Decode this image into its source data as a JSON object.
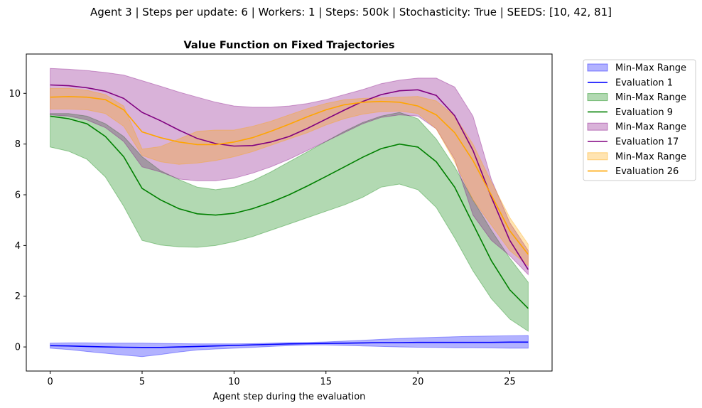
{
  "suptitle": "Agent 3 | Steps per update: 6 | Workers: 1 | Steps: 500k | Stochasticity: True | SEEDS: [10, 42, 81]",
  "chart_data": {
    "type": "line",
    "title": "Value Function on Fixed Trajectories",
    "xlabel": "Agent step during the evaluation",
    "ylabel": "",
    "xlim": [
      -1.3,
      27.3
    ],
    "ylim": [
      -0.95,
      11.55
    ],
    "x_ticks": [
      0,
      5,
      10,
      15,
      20,
      25
    ],
    "y_ticks": [
      0,
      2,
      4,
      6,
      8,
      10
    ],
    "grid": false,
    "legend_position": "outside-top-right",
    "x": [
      0,
      1,
      2,
      3,
      4,
      5,
      6,
      7,
      8,
      9,
      10,
      11,
      12,
      13,
      14,
      15,
      16,
      17,
      18,
      19,
      20,
      21,
      22,
      23,
      24,
      25,
      26
    ],
    "series": [
      {
        "name": "Evaluation 1",
        "band_name": "Min-Max Range",
        "color": "#0000ff",
        "values": [
          0.05,
          0.04,
          0.02,
          0.0,
          -0.01,
          -0.02,
          -0.02,
          0.0,
          0.02,
          0.04,
          0.06,
          0.08,
          0.1,
          0.12,
          0.13,
          0.14,
          0.15,
          0.16,
          0.17,
          0.17,
          0.18,
          0.18,
          0.18,
          0.18,
          0.18,
          0.19,
          0.19
        ],
        "min": [
          -0.05,
          -0.1,
          -0.18,
          -0.25,
          -0.32,
          -0.38,
          -0.3,
          -0.2,
          -0.12,
          -0.08,
          -0.05,
          -0.02,
          0.02,
          0.05,
          0.08,
          0.08,
          0.06,
          0.04,
          0.02,
          0.0,
          -0.01,
          -0.02,
          -0.03,
          -0.03,
          -0.04,
          -0.05,
          -0.05
        ],
        "max": [
          0.15,
          0.16,
          0.16,
          0.15,
          0.15,
          0.15,
          0.14,
          0.13,
          0.12,
          0.12,
          0.12,
          0.13,
          0.15,
          0.17,
          0.18,
          0.2,
          0.23,
          0.26,
          0.3,
          0.33,
          0.36,
          0.38,
          0.4,
          0.42,
          0.43,
          0.44,
          0.45
        ]
      },
      {
        "name": "Evaluation 9",
        "band_name": "Min-Max Range",
        "color": "#008000",
        "values": [
          9.1,
          9.0,
          8.8,
          8.3,
          7.5,
          6.25,
          5.8,
          5.45,
          5.25,
          5.2,
          5.27,
          5.45,
          5.7,
          6.0,
          6.35,
          6.72,
          7.1,
          7.48,
          7.82,
          8.0,
          7.88,
          7.3,
          6.3,
          4.85,
          3.4,
          2.25,
          1.52
        ],
        "min": [
          7.88,
          7.72,
          7.4,
          6.7,
          5.55,
          4.2,
          4.02,
          3.95,
          3.93,
          4.0,
          4.15,
          4.35,
          4.6,
          4.85,
          5.1,
          5.35,
          5.6,
          5.9,
          6.3,
          6.42,
          6.2,
          5.5,
          4.3,
          3.0,
          1.9,
          1.1,
          0.62
        ],
        "max": [
          9.2,
          9.2,
          9.1,
          8.8,
          8.3,
          7.5,
          6.95,
          6.6,
          6.3,
          6.2,
          6.3,
          6.55,
          6.9,
          7.3,
          7.7,
          8.1,
          8.5,
          8.85,
          9.1,
          9.25,
          9.0,
          8.2,
          7.1,
          5.8,
          4.6,
          3.5,
          2.55
        ]
      },
      {
        "name": "Evaluation 17",
        "band_name": "Min-Max Range",
        "color": "#800080",
        "values": [
          10.33,
          10.3,
          10.22,
          10.08,
          9.8,
          9.25,
          8.92,
          8.55,
          8.22,
          8.02,
          7.92,
          7.94,
          8.08,
          8.3,
          8.62,
          8.98,
          9.34,
          9.68,
          9.95,
          10.1,
          10.14,
          9.92,
          9.12,
          7.75,
          5.9,
          4.2,
          3.05
        ],
        "min": [
          9.15,
          9.1,
          8.95,
          8.65,
          8.1,
          7.1,
          6.9,
          6.62,
          6.55,
          6.55,
          6.65,
          6.85,
          7.1,
          7.4,
          7.75,
          8.1,
          8.45,
          8.8,
          9.05,
          9.15,
          9.1,
          8.6,
          7.4,
          5.2,
          4.2,
          3.6,
          2.85
        ],
        "max": [
          10.98,
          10.95,
          10.9,
          10.82,
          10.72,
          10.5,
          10.28,
          10.05,
          9.85,
          9.65,
          9.5,
          9.45,
          9.45,
          9.5,
          9.6,
          9.75,
          9.95,
          10.15,
          10.38,
          10.52,
          10.6,
          10.6,
          10.25,
          9.1,
          6.6,
          4.9,
          3.8
        ]
      },
      {
        "name": "Evaluation 26",
        "band_name": "Min-Max Range",
        "color": "#ffa500",
        "values": [
          9.85,
          9.87,
          9.85,
          9.75,
          9.35,
          8.48,
          8.25,
          8.08,
          7.98,
          7.98,
          8.08,
          8.25,
          8.5,
          8.78,
          9.08,
          9.35,
          9.55,
          9.65,
          9.68,
          9.65,
          9.5,
          9.15,
          8.45,
          7.35,
          5.98,
          4.58,
          3.65
        ],
        "min": [
          9.38,
          9.38,
          9.35,
          9.2,
          8.7,
          7.55,
          7.3,
          7.2,
          7.25,
          7.35,
          7.5,
          7.7,
          7.95,
          8.2,
          8.45,
          8.75,
          9.0,
          9.18,
          9.28,
          9.3,
          9.2,
          8.6,
          7.3,
          5.8,
          4.8,
          3.8,
          3.2
        ],
        "max": [
          10.2,
          10.2,
          10.12,
          9.95,
          9.5,
          7.8,
          7.9,
          8.2,
          8.5,
          8.55,
          8.55,
          8.7,
          8.9,
          9.15,
          9.4,
          9.6,
          9.75,
          9.8,
          9.82,
          9.85,
          9.88,
          9.7,
          9.1,
          8.0,
          6.5,
          5.1,
          4.05
        ]
      }
    ]
  }
}
